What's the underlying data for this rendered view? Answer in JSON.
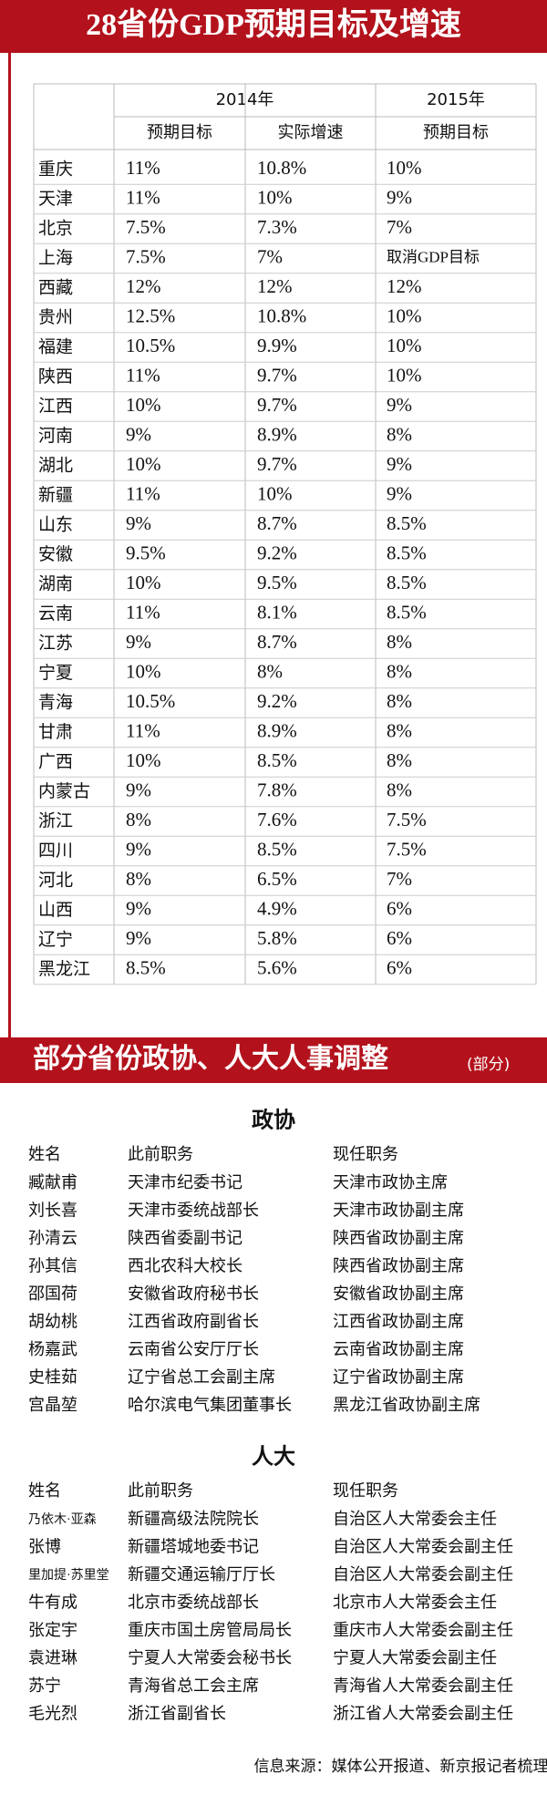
{
  "header": {
    "title": "28省份GDP预期目标及增速"
  },
  "gdp_table": {
    "year_headers": [
      "2014年",
      "2015年"
    ],
    "column_headers": [
      "预期目标",
      "实际增速",
      "预期目标"
    ],
    "rows": [
      [
        "重庆",
        "11%",
        "10.8%",
        "10%"
      ],
      [
        "天津",
        "11%",
        "10%",
        "9%"
      ],
      [
        "北京",
        "7.5%",
        "7.3%",
        "7%"
      ],
      [
        "上海",
        "7.5%",
        "7%",
        "取消GDP目标"
      ],
      [
        "西藏",
        "12%",
        "12%",
        "12%"
      ],
      [
        "贵州",
        "12.5%",
        "10.8%",
        "10%"
      ],
      [
        "福建",
        "10.5%",
        "9.9%",
        "10%"
      ],
      [
        "陕西",
        "11%",
        "9.7%",
        "10%"
      ],
      [
        "江西",
        "10%",
        "9.7%",
        "9%"
      ],
      [
        "河南",
        "9%",
        "8.9%",
        "8%"
      ],
      [
        "湖北",
        "10%",
        "9.7%",
        "9%"
      ],
      [
        "新疆",
        "11%",
        "10%",
        "9%"
      ],
      [
        "山东",
        "9%",
        "8.7%",
        "8.5%"
      ],
      [
        "安徽",
        "9.5%",
        "9.2%",
        "8.5%"
      ],
      [
        "湖南",
        "10%",
        "9.5%",
        "8.5%"
      ],
      [
        "云南",
        "11%",
        "8.1%",
        "8.5%"
      ],
      [
        "江苏",
        "9%",
        "8.7%",
        "8%"
      ],
      [
        "宁夏",
        "10%",
        "8%",
        "8%"
      ],
      [
        "青海",
        "10.5%",
        "9.2%",
        "8%"
      ],
      [
        "甘肃",
        "11%",
        "8.9%",
        "8%"
      ],
      [
        "广西",
        "10%",
        "8.5%",
        "8%"
      ],
      [
        "内蒙古",
        "9%",
        "7.8%",
        "8%"
      ],
      [
        "浙江",
        "8%",
        "7.6%",
        "7.5%"
      ],
      [
        "四川",
        "9%",
        "8.5%",
        "7.5%"
      ],
      [
        "河北",
        "8%",
        "6.5%",
        "7%"
      ],
      [
        "山西",
        "9%",
        "4.9%",
        "6%"
      ],
      [
        "辽宁",
        "9%",
        "5.8%",
        "6%"
      ],
      [
        "黑龙江",
        "8.5%",
        "5.6%",
        "6%"
      ]
    ]
  },
  "personnel": {
    "title": "部分省份政协、人大人事调整",
    "title_note": "(部分)",
    "groups": [
      {
        "title": "政协",
        "column_headers": [
          "姓名",
          "此前职务",
          "现任职务"
        ],
        "rows": [
          [
            "臧献甫",
            "天津市纪委书记",
            "天津市政协主席"
          ],
          [
            "刘长喜",
            "天津市委统战部长",
            "天津市政协副主席"
          ],
          [
            "孙清云",
            "陕西省委副书记",
            "陕西省政协副主席"
          ],
          [
            "孙其信",
            "西北农科大校长",
            "陕西省政协副主席"
          ],
          [
            "邵国荷",
            "安徽省政府秘书长",
            "安徽省政协副主席"
          ],
          [
            "胡幼桃",
            "江西省政府副省长",
            "江西省政协副主席"
          ],
          [
            "杨嘉武",
            "云南省公安厅厅长",
            "云南省政协副主席"
          ],
          [
            "史桂茹",
            "辽宁省总工会副主席",
            "辽宁省政协副主席"
          ],
          [
            "宫晶堃",
            "哈尔滨电气集团董事长",
            "黑龙江省政协副主席"
          ]
        ]
      },
      {
        "title": "人大",
        "column_headers": [
          "姓名",
          "此前职务",
          "现任职务"
        ],
        "rows": [
          [
            "乃依木·亚森",
            "新疆高级法院院长",
            "自治区人大常委会主任"
          ],
          [
            "张博",
            "新疆塔城地委书记",
            "自治区人大常委会副主任"
          ],
          [
            "里加提·苏里堂",
            "新疆交通运输厅厅长",
            "自治区人大常委会副主任"
          ],
          [
            "牛有成",
            "北京市委统战部长",
            "北京市人大常委会主任"
          ],
          [
            "张定宇",
            "重庆市国土房管局局长",
            "重庆市人大常委会副主任"
          ],
          [
            "袁进琳",
            "宁夏人大常委会秘书长",
            "宁夏人大常委会副主任"
          ],
          [
            "苏宁",
            "青海省总工会主席",
            "青海省人大常委会副主任"
          ],
          [
            "毛光烈",
            "浙江省副省长",
            "浙江省人大常委会副主任"
          ]
        ]
      }
    ]
  },
  "source": "信息来源：媒体公开报道、新京报记者梳理"
}
